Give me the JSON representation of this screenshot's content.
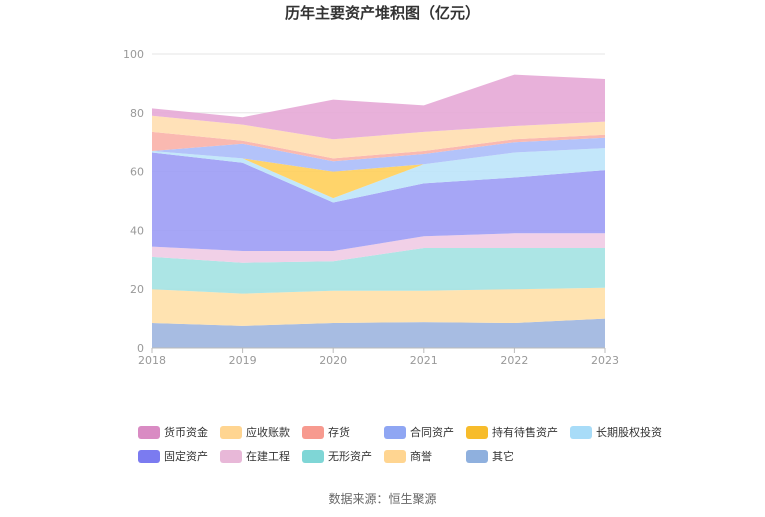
{
  "chart_data": {
    "type": "area",
    "stacked": true,
    "title": "历年主要资产堆积图（亿元）",
    "x": [
      "2018",
      "2019",
      "2020",
      "2021",
      "2022",
      "2023"
    ],
    "ylim": [
      0,
      100
    ],
    "yticks": [
      "0",
      "20",
      "40",
      "60",
      "80",
      "100"
    ],
    "grid": true,
    "legend_position": "bottom",
    "series": [
      {
        "name": "其它",
        "color": "#9db5df",
        "values": [
          8.5,
          7.5,
          8.5,
          8.8,
          8.5,
          10.0
        ]
      },
      {
        "name": "商誉",
        "color": "#ffe0a8",
        "values": [
          11.5,
          11.0,
          11.0,
          10.7,
          11.5,
          10.5
        ]
      },
      {
        "name": "无形资产",
        "color": "#a3e2e2",
        "values": [
          11.0,
          10.5,
          10.0,
          14.5,
          14.0,
          13.5
        ]
      },
      {
        "name": "在建工程",
        "color": "#efcbe4",
        "values": [
          3.5,
          4.0,
          3.5,
          4.0,
          5.0,
          5.0
        ]
      },
      {
        "name": "固定资产",
        "color": "#9c9cf5",
        "values": [
          32.0,
          30.0,
          16.5,
          18.0,
          19.0,
          21.5
        ]
      },
      {
        "name": "长期股权投资",
        "color": "#bde4fa",
        "values": [
          0.5,
          1.5,
          1.5,
          6.5,
          8.5,
          7.5
        ]
      },
      {
        "name": "持有待售资产",
        "color": "#ffcf5a",
        "values": [
          0,
          0,
          9.0,
          0,
          0,
          0
        ]
      },
      {
        "name": "合同资产",
        "color": "#abbdf9",
        "values": [
          0,
          5.0,
          3.5,
          3.5,
          3.5,
          3.5
        ]
      },
      {
        "name": "存货",
        "color": "#f9b1a9",
        "values": [
          6.5,
          1.0,
          1.0,
          1.0,
          1.0,
          1.0
        ]
      },
      {
        "name": "应收账款",
        "color": "#ffdeb0",
        "values": [
          5.5,
          5.5,
          6.5,
          6.5,
          4.5,
          4.5
        ]
      },
      {
        "name": "货币资金",
        "color": "#e6a9d6",
        "values": [
          2.5,
          2.5,
          13.5,
          9.0,
          17.5,
          14.5
        ]
      }
    ],
    "legend_order": [
      "货币资金",
      "应收账款",
      "存货",
      "合同资产",
      "持有待售资产",
      "长期股权投资",
      "固定资产",
      "在建工程",
      "无形资产",
      "商誉",
      "其它"
    ],
    "legend_colors": [
      "#d98bc3",
      "#ffd591",
      "#f79a8f",
      "#8fa6f3",
      "#f7bc2b",
      "#a8dcf8",
      "#7b7bf0",
      "#e8b8d8",
      "#7fd6d6",
      "#ffd591",
      "#8fb0de"
    ]
  },
  "footer": {
    "source": "数据来源：恒生聚源"
  }
}
